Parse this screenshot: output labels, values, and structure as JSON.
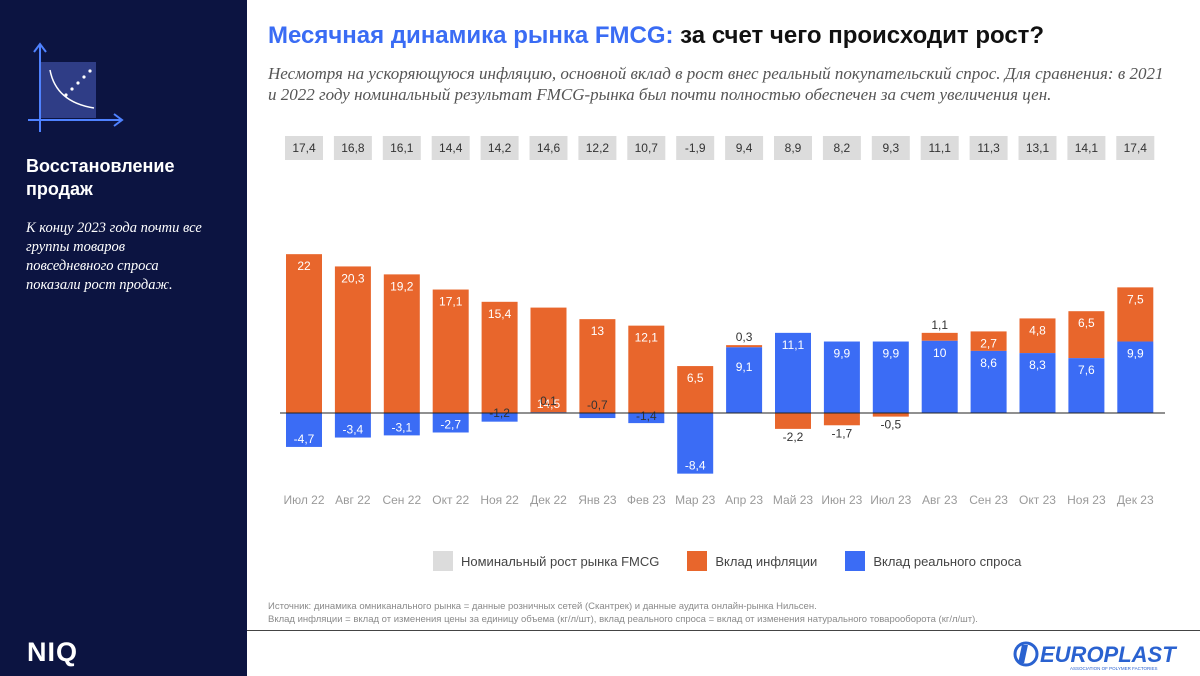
{
  "sidebar": {
    "heading": "Восстановление продаж",
    "description": "К концу 2023 года почти все группы товаров повседневного спроса показали рост продаж.",
    "brand": "NIQ"
  },
  "title": {
    "accent": "Месячная динамика рынка FMCG:",
    "rest": " за счет чего происходит рост?"
  },
  "subtitle": "Несмотря на ускоряющуюся инфляцию, основной вклад в рост внес реальный покупательский спрос. Для сравнения: в 2021 и 2022 году номинальный результат FMCG-рынка был почти полностью обеспечен за счет увеличения цен.",
  "legend": {
    "nominal": "Номинальный рост рынка FMCG",
    "inflation": "Вклад инфляции",
    "real": "Вклад реального спроса"
  },
  "source": {
    "line1": "Источник: динамика омниканального рынка = данные розничных сетей (Скантрек) и данные аудита онлайн-рынка Нильсен.",
    "line2": "Вклад инфляции = вклад от изменения цены за единицу объема (кг/л/шт), вклад реального спроса = вклад от изменения натурального товарооборота (кг/л/шт)."
  },
  "footer_logo": {
    "name": "EUROPLAST",
    "tagline": "ASSOCIATION OF POLYMER FACTORIES"
  },
  "colors": {
    "sidebar": "#0c1441",
    "inflation": "#e8662c",
    "real": "#3b6cf5",
    "nominal_box": "#dcdcdc",
    "accent": "#3a6cf4"
  },
  "chart_data": {
    "type": "bar",
    "stacked": true,
    "categories": [
      "Июл 22",
      "Авг 22",
      "Сен 22",
      "Окт 22",
      "Ноя 22",
      "Дек 22",
      "Янв 23",
      "Фев 23",
      "Мар 23",
      "Апр 23",
      "Май 23",
      "Июн 23",
      "Июл 23",
      "Авг 23",
      "Сен 23",
      "Окт 23",
      "Ноя 23",
      "Дек 23"
    ],
    "nominal": [
      17.4,
      16.8,
      16.1,
      14.4,
      14.2,
      14.6,
      12.2,
      10.7,
      -1.9,
      9.4,
      8.9,
      8.2,
      9.3,
      11.1,
      11.3,
      13.1,
      14.1,
      17.4
    ],
    "nominal_labels": [
      "17,4",
      "16,8",
      "16,1",
      "14,4",
      "14,2",
      "14,6",
      "12,2",
      "10,7",
      "-1,9",
      "9,4",
      "8,9",
      "8,2",
      "9,3",
      "11,1",
      "11,3",
      "13,1",
      "14,1",
      "17,4"
    ],
    "series": [
      {
        "name": "Вклад инфляции",
        "values": [
          22,
          20.3,
          19.2,
          17.1,
          15.4,
          14.5,
          13,
          12.1,
          6.5,
          0.3,
          -2.2,
          -1.7,
          -0.5,
          1.1,
          2.7,
          4.8,
          6.5,
          7.5
        ],
        "labels": [
          "22",
          "20,3",
          "19,2",
          "17,1",
          "15,4",
          "14,5",
          "13",
          "12,1",
          "6,5",
          "0,3",
          "-2,2",
          "-1,7",
          "-0,5",
          "1,1",
          "2,7",
          "4,8",
          "6,5",
          "7,5"
        ]
      },
      {
        "name": "Вклад реального спроса",
        "values": [
          -4.7,
          -3.4,
          -3.1,
          -2.7,
          -1.2,
          0.1,
          -0.7,
          -1.4,
          -8.4,
          9.1,
          11.1,
          9.9,
          9.9,
          10,
          8.6,
          8.3,
          7.6,
          9.9
        ],
        "labels": [
          "-4,7",
          "-3,4",
          "-3,1",
          "-2,7",
          "-1,2",
          "0,1",
          "-0,7",
          "-1,4",
          "-8,4",
          "9,1",
          "11,1",
          "9,9",
          "9,9",
          "10",
          "8,6",
          "8,3",
          "7,6",
          "9,9"
        ]
      }
    ],
    "title": "Месячная динамика рынка FMCG: за счет чего происходит рост?",
    "xlabel": "",
    "ylabel": "",
    "ylim": [
      -10,
      24
    ]
  }
}
